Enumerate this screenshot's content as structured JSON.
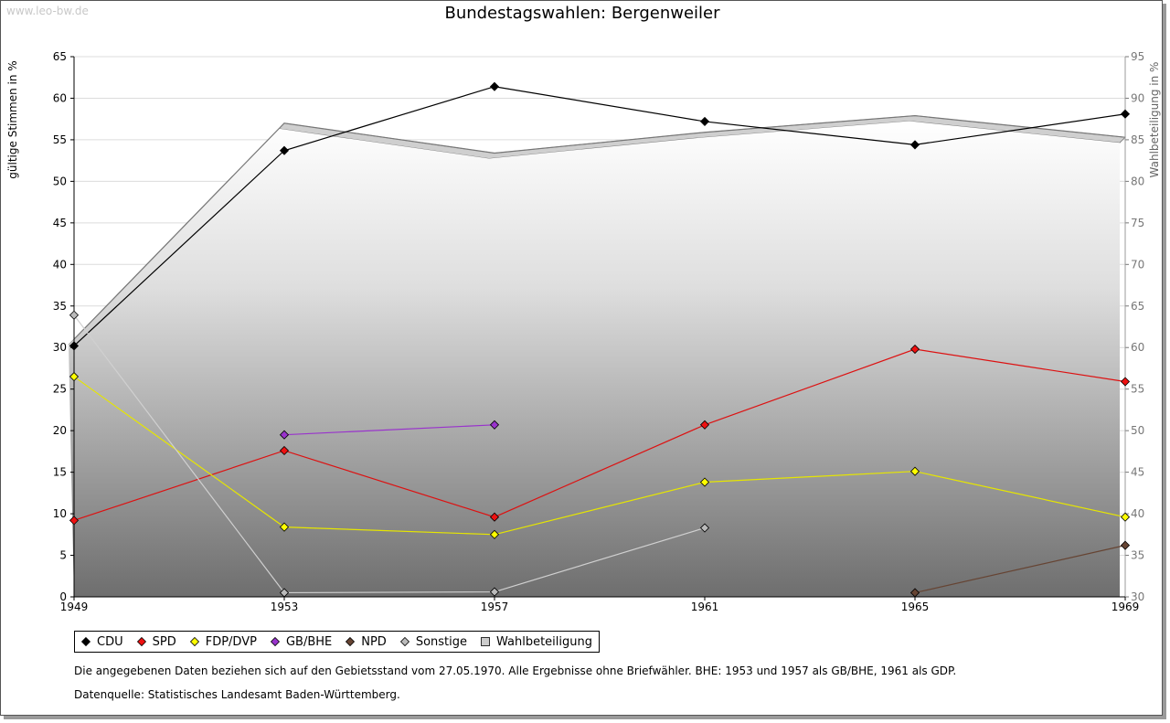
{
  "watermark": "www.leo-bw.de",
  "note": "Die angegebenen Daten beziehen sich auf den Gebietsstand vom 27.05.1970. Alle Ergebnisse ohne Briefwähler. BHE: 1953 und 1957 als GB/BHE, 1961 als GDP.",
  "source": "Datenquelle: Statistisches Landesamt Baden-Württemberg.",
  "chart_data": {
    "type": "line",
    "title": "Bundestagswahlen: Bergenweiler",
    "ylabel": "gültige Stimmen in %",
    "y2label": "Wahlbeteiligung in %",
    "x": [
      "1949",
      "1953",
      "1957",
      "1961",
      "1965",
      "1969"
    ],
    "ylim": [
      0,
      65
    ],
    "y2lim": [
      30,
      95
    ],
    "yticks": [
      0,
      5,
      10,
      15,
      20,
      25,
      30,
      35,
      40,
      45,
      50,
      55,
      60,
      65
    ],
    "y2ticks": [
      30,
      35,
      40,
      45,
      50,
      55,
      60,
      65,
      70,
      75,
      80,
      85,
      90,
      95
    ],
    "grid": true,
    "legend_position": "bottom",
    "series": [
      {
        "name": "CDU",
        "color": "#000000",
        "line_color": "#000000",
        "values": [
          30.2,
          53.7,
          61.4,
          57.2,
          54.4,
          58.1
        ]
      },
      {
        "name": "SPD",
        "color": "#ee1111",
        "line_color": "#dd1111",
        "values": [
          9.2,
          17.6,
          9.6,
          20.7,
          29.8,
          25.9
        ]
      },
      {
        "name": "FDP/DVP",
        "color": "#ffff00",
        "line_color": "#e6e600",
        "values": [
          26.5,
          8.4,
          7.5,
          13.8,
          15.1,
          9.6
        ]
      },
      {
        "name": "GB/BHE",
        "color": "#9933cc",
        "line_color": "#9933cc",
        "values": [
          null,
          19.5,
          20.7,
          null,
          null,
          null
        ]
      },
      {
        "name": "NPD",
        "color": "#664433",
        "line_color": "#664433",
        "values": [
          null,
          null,
          null,
          null,
          0.5,
          6.2
        ]
      },
      {
        "name": "Sonstige",
        "color": "#bbbbbb",
        "line_color": "#d0d0d0",
        "values": [
          33.9,
          0.5,
          0.6,
          8.3,
          null,
          null
        ]
      }
    ],
    "turnout": {
      "name": "Wahlbeteiligung",
      "color": "#cccccc",
      "axis": "right",
      "values": [
        61.0,
        87.0,
        83.4,
        85.9,
        87.9,
        85.3
      ]
    }
  }
}
